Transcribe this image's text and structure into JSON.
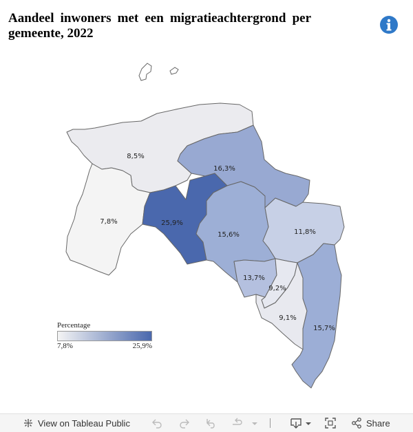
{
  "title": "Aandeel inwoners met een migratieachtergrond per gemeente, 2022",
  "legend": {
    "title": "Percentage",
    "min": "7,8%",
    "max": "25,9%",
    "color_min": "#f4f4f4",
    "color_max": "#4a68ad"
  },
  "regions": [
    {
      "id": "north",
      "label": "8,5%",
      "value": 8.5,
      "color": "#ebebef"
    },
    {
      "id": "northeast",
      "label": "16,3%",
      "value": 16.3,
      "color": "#98a9d2"
    },
    {
      "id": "west",
      "label": "7,8%",
      "value": 7.8,
      "color": "#f4f4f4"
    },
    {
      "id": "city",
      "label": "25,9%",
      "value": 25.9,
      "color": "#4a68ad"
    },
    {
      "id": "center",
      "label": "15,6%",
      "value": 15.6,
      "color": "#9dafd6"
    },
    {
      "id": "east",
      "label": "11,8%",
      "value": 11.8,
      "color": "#c7d0e6"
    },
    {
      "id": "south-center",
      "label": "13,7%",
      "value": 13.7,
      "color": "#b4c0df"
    },
    {
      "id": "south-small",
      "label": "9,2%",
      "value": 9.2,
      "color": "#e6e8f0"
    },
    {
      "id": "south-west",
      "label": "9,1%",
      "value": 9.1,
      "color": "#e8e9ef"
    },
    {
      "id": "southeast",
      "label": "15,7%",
      "value": 15.7,
      "color": "#9caed6"
    }
  ],
  "toolbar": {
    "view_label": "View on Tableau Public",
    "share_label": "Share"
  },
  "icons": {
    "info": "info-icon",
    "tableau": "tableau-logo-icon",
    "undo": "undo-icon",
    "redo": "redo-icon",
    "revert": "revert-icon",
    "refresh": "refresh-icon",
    "download": "download-icon",
    "fullscreen": "fullscreen-icon",
    "share": "share-icon"
  }
}
